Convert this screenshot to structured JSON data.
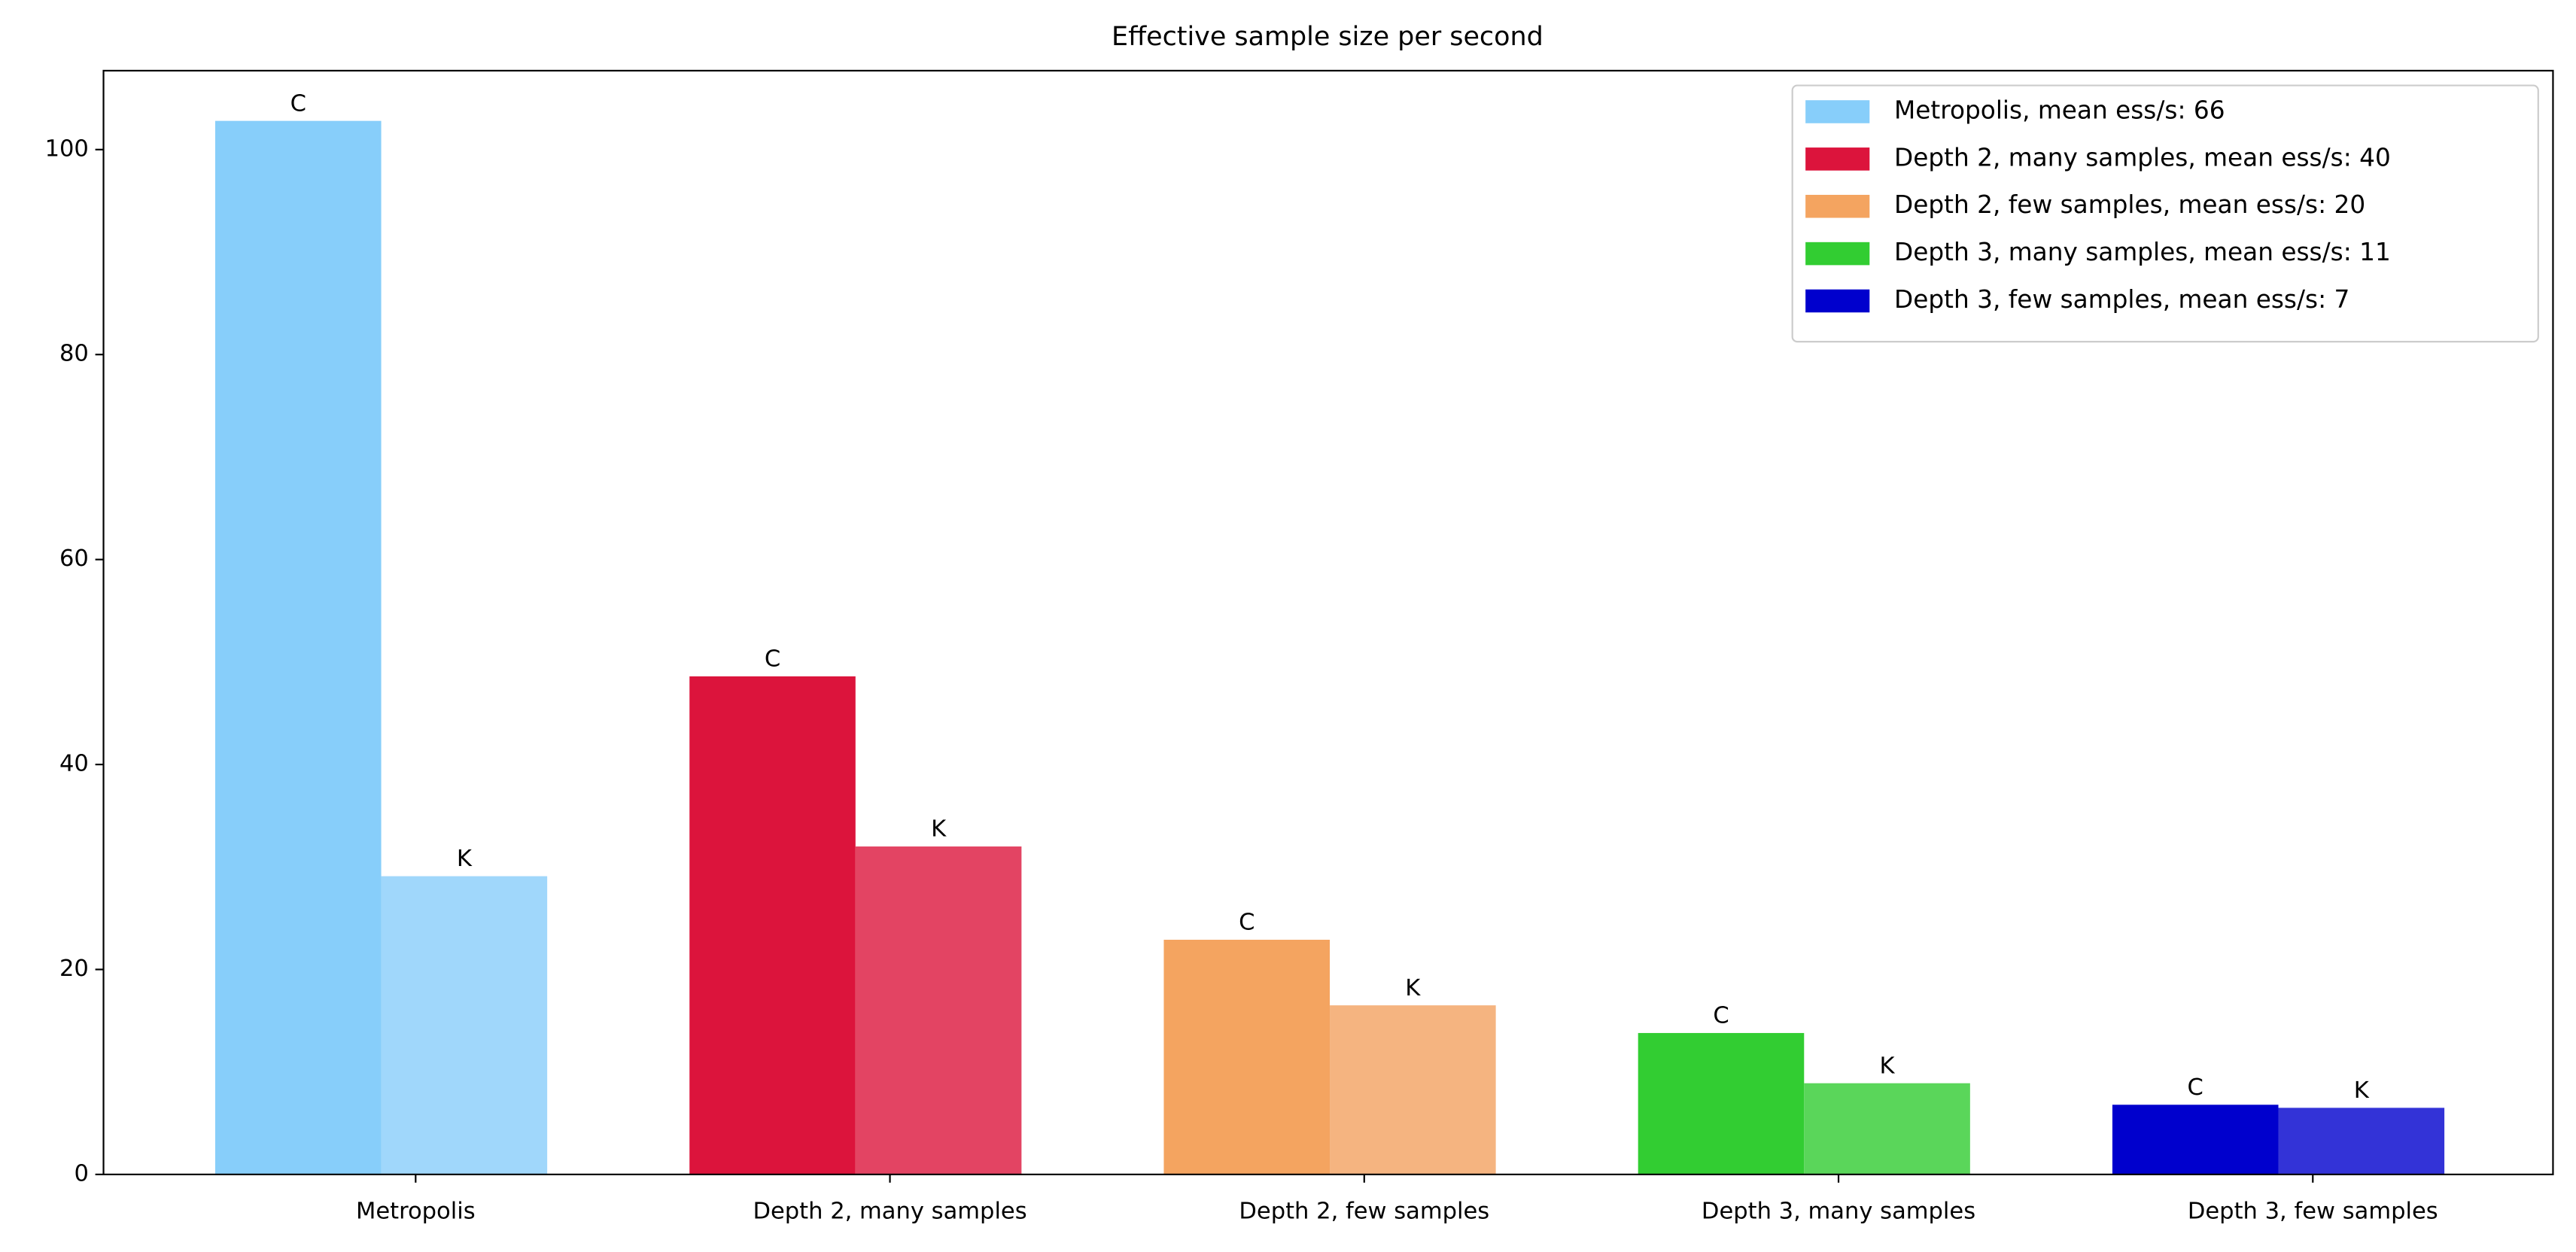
{
  "chart_data": {
    "type": "grouped_bar",
    "title": "Effective sample size per second",
    "categories": [
      "Metropolis",
      "Depth 2, many samples",
      "Depth 2, few samples",
      "Depth 3, many samples",
      "Depth 3, few samples"
    ],
    "series": [
      {
        "name": "C",
        "colors": [
          "#87cefa",
          "#dc143c",
          "#f4a460",
          "#32cd32",
          "#0000cd"
        ],
        "values": [
          102.8,
          48.6,
          22.9,
          13.8,
          6.8
        ]
      },
      {
        "name": "K",
        "colors": [
          "#a0d7fb",
          "#e34463",
          "#f5b480",
          "#5ad65a",
          "#3333d7"
        ],
        "values": [
          29.1,
          32.0,
          16.5,
          8.9,
          6.5
        ]
      }
    ],
    "ylim": [
      0,
      107.7
    ],
    "yticks": [
      0,
      20,
      40,
      60,
      80,
      100
    ],
    "legend": {
      "location": "upper right",
      "entries": [
        {
          "label": "Metropolis, mean ess/s: 66",
          "color": "#87cefa"
        },
        {
          "label": "Depth 2, many samples, mean ess/s: 40",
          "color": "#dc143c"
        },
        {
          "label": "Depth 2, few samples, mean ess/s: 20",
          "color": "#f4a460"
        },
        {
          "label": "Depth 3, many samples, mean ess/s: 11",
          "color": "#32cd32"
        },
        {
          "label": "Depth 3, few samples, mean ess/s: 7",
          "color": "#0000cd"
        }
      ]
    }
  }
}
